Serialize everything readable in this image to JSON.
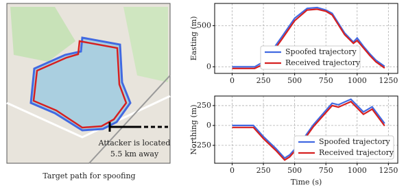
{
  "map": {
    "caption": "Target path for spoofing",
    "attacker_line1": "Attacker is located",
    "attacker_line2": "5.5 km away"
  },
  "chart_data": [
    {
      "type": "line",
      "ylabel": "Easting (m)",
      "legend": "lower center",
      "grid": true,
      "xlim": [
        -140,
        1325
      ],
      "xticks": [
        0,
        250,
        500,
        750,
        1000,
        1250
      ],
      "ylim": [
        -80,
        770
      ],
      "yticks": [
        0,
        500
      ],
      "x": [
        0,
        180,
        250,
        320,
        400,
        500,
        600,
        680,
        750,
        800,
        850,
        900,
        970,
        1000,
        1050,
        1100,
        1150,
        1220
      ],
      "series": [
        {
          "name": "Spoofed trajectory",
          "color": "#4169e1",
          "values": [
            0,
            0,
            60,
            200,
            370,
            590,
            710,
            720,
            690,
            650,
            530,
            410,
            300,
            350,
            250,
            160,
            80,
            5
          ]
        },
        {
          "name": "Received trajectory",
          "color": "#d62020",
          "values": [
            -20,
            -20,
            30,
            170,
            340,
            560,
            690,
            700,
            675,
            630,
            510,
            390,
            285,
            320,
            230,
            140,
            60,
            -15
          ]
        }
      ]
    },
    {
      "type": "line",
      "xlabel": "Time (s)",
      "ylabel": "Northing (m)",
      "legend": "lower right",
      "grid": true,
      "xlim": [
        -140,
        1325
      ],
      "xticks": [
        0,
        250,
        500,
        750,
        1000,
        1250
      ],
      "ylim": [
        -475,
        370
      ],
      "yticks": [
        250,
        0,
        -250
      ],
      "x": [
        0,
        170,
        250,
        350,
        420,
        460,
        550,
        650,
        800,
        850,
        950,
        1050,
        1120,
        1220
      ],
      "series": [
        {
          "name": "Spoofed trajectory",
          "color": "#4169e1",
          "values": [
            0,
            0,
            -140,
            -290,
            -410,
            -370,
            -210,
            10,
            280,
            260,
            330,
            170,
            235,
            25
          ]
        },
        {
          "name": "Received trajectory",
          "color": "#d62020",
          "values": [
            -25,
            -25,
            -165,
            -315,
            -435,
            -395,
            -235,
            -15,
            250,
            230,
            300,
            140,
            205,
            -5
          ]
        }
      ]
    }
  ]
}
